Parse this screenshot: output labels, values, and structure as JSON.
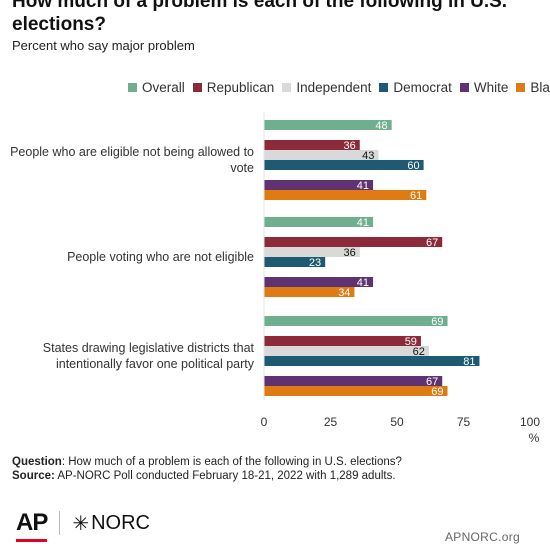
{
  "header": {
    "title": "How much of a problem is each of the following in U.S. elections?",
    "subtitle": "Percent who say major problem"
  },
  "footer": {
    "question_label": "Question",
    "question_text": ": How much of a problem is each of the following in U.S. elections?",
    "source_label": "Source:",
    "source_text": " AP-NORC Poll conducted February 18-21, 2022 with 1,289 adults."
  },
  "logos": {
    "ap": "AP",
    "norc": "NORC",
    "norc_icon": "asterisk-star-icon",
    "site": "APNORC.org"
  },
  "chart_data": {
    "type": "bar",
    "orientation": "horizontal",
    "categories": [
      "People who are eligible not being allowed to vote",
      "People voting who are not eligible",
      "States drawing legislative districts that intentionally favor one political party"
    ],
    "series": [
      {
        "name": "Overall",
        "color": "#6fae8e",
        "values": [
          48,
          41,
          69
        ]
      },
      {
        "name": "Republican",
        "color": "#8c2a3a",
        "values": [
          36,
          67,
          59
        ]
      },
      {
        "name": "Independent",
        "color": "#d9d9d9",
        "values": [
          43,
          36,
          62
        ]
      },
      {
        "name": "Democrat",
        "color": "#1e5a73",
        "values": [
          60,
          23,
          81
        ]
      },
      {
        "name": "White",
        "color": "#5f3371",
        "values": [
          41,
          41,
          67
        ]
      },
      {
        "name": "Black",
        "color": "#e07a12",
        "values": [
          61,
          34,
          69
        ]
      }
    ],
    "xlim": [
      0,
      100
    ],
    "xticks": [
      0,
      25,
      50,
      75,
      100
    ],
    "xunit": "%",
    "legend_position": "top",
    "grid": false
  }
}
